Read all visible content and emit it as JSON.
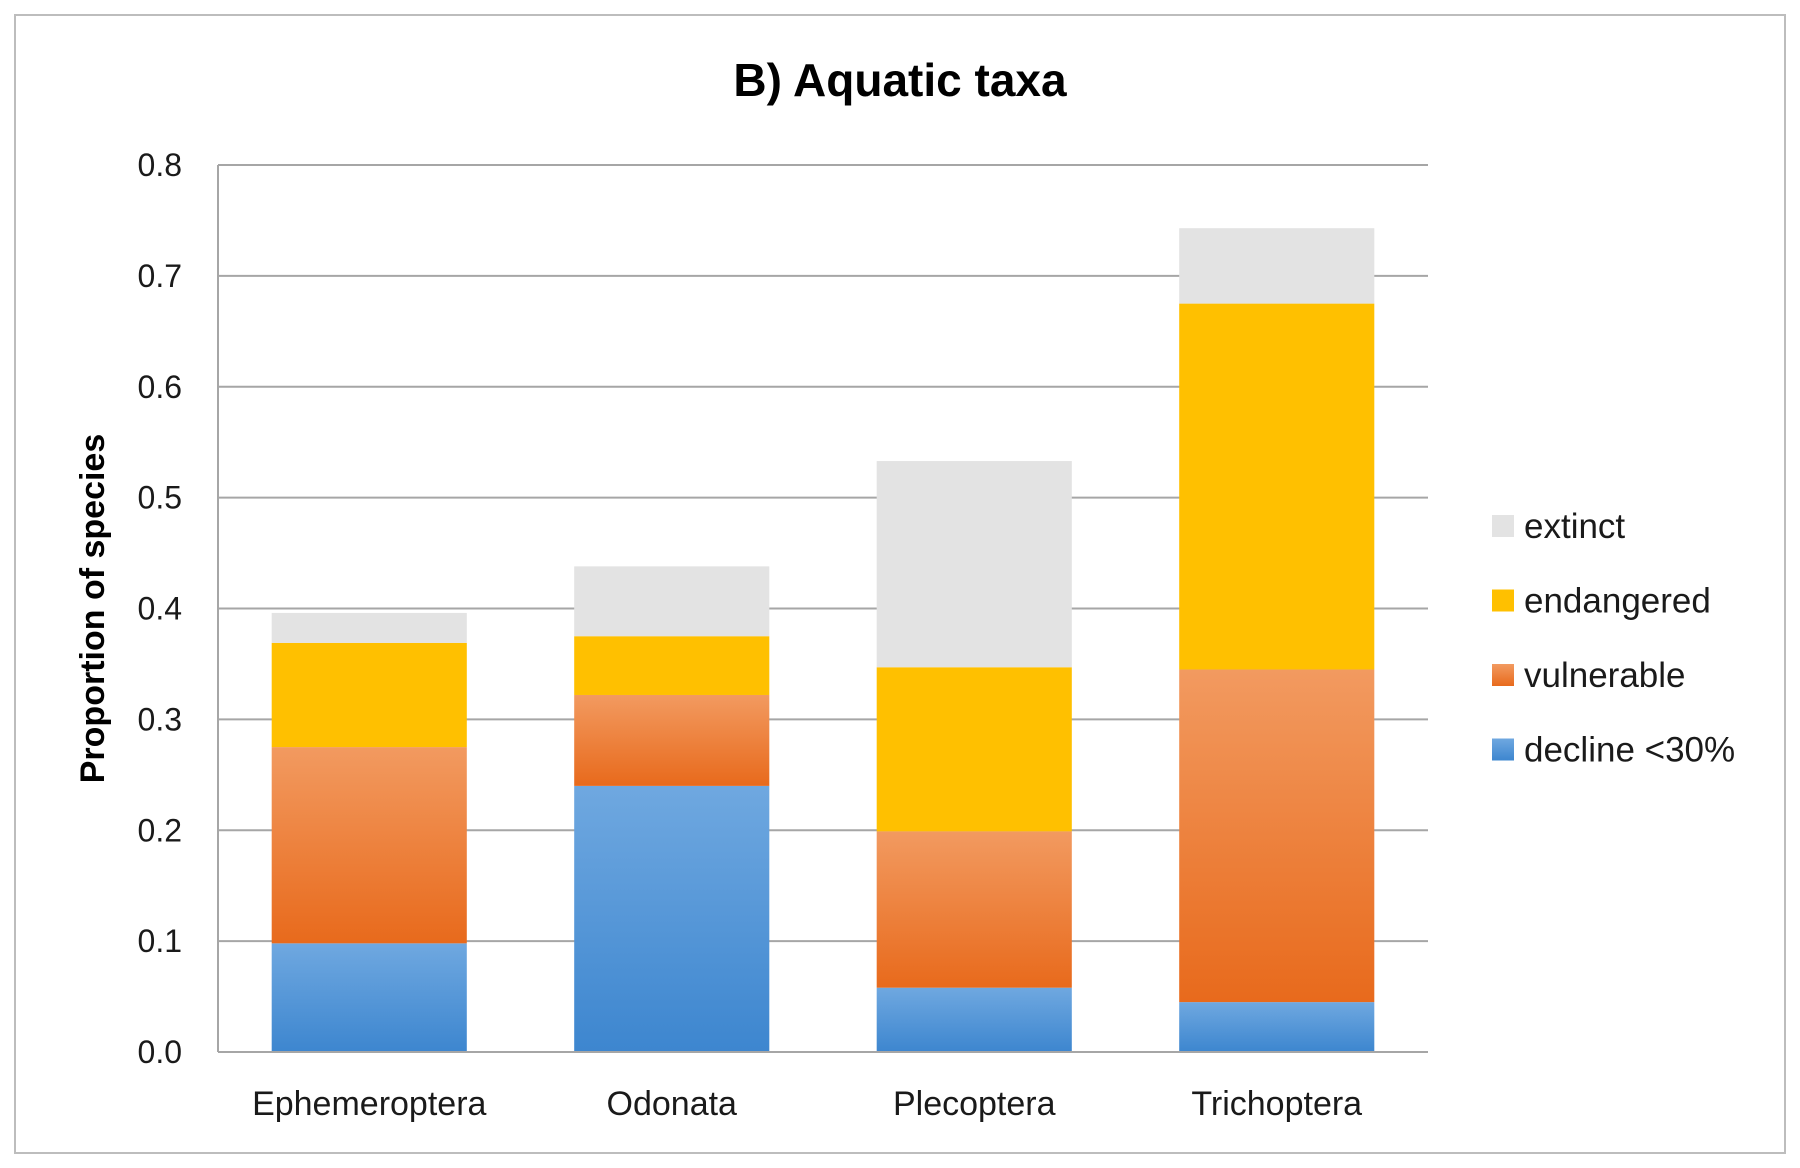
{
  "chart_data": {
    "type": "bar",
    "stacked": true,
    "title": "B) Aquatic taxa",
    "ylabel": "Proportion of species",
    "xlabel": "",
    "ylim": [
      0,
      0.8
    ],
    "yticks": [
      "0.0",
      "0.1",
      "0.2",
      "0.3",
      "0.4",
      "0.5",
      "0.6",
      "0.7",
      "0.8"
    ],
    "grid": true,
    "legend_position": "right",
    "categories": [
      "Ephemeroptera",
      "Odonata",
      "Plecoptera",
      "Trichoptera"
    ],
    "series": [
      {
        "name": "decline <30%",
        "color": "#4a90d9",
        "values": [
          0.098,
          0.24,
          0.058,
          0.045
        ]
      },
      {
        "name": "vulnerable",
        "color": "#ee7b30",
        "values": [
          0.177,
          0.082,
          0.141,
          0.3
        ]
      },
      {
        "name": "endangered",
        "color": "#ffc000",
        "values": [
          0.094,
          0.053,
          0.148,
          0.33
        ]
      },
      {
        "name": "extinct",
        "color": "#e3e3e3",
        "values": [
          0.027,
          0.063,
          0.186,
          0.068
        ]
      }
    ],
    "legend_order": [
      "extinct",
      "endangered",
      "vulnerable",
      "decline <30%"
    ]
  }
}
